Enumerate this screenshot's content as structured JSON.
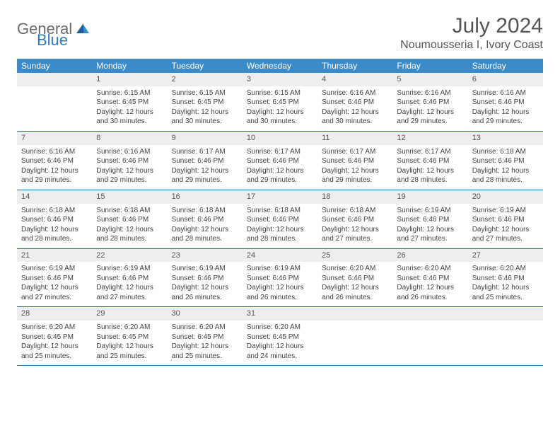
{
  "brand": {
    "general": "General",
    "blue": "Blue"
  },
  "title": "July 2024",
  "location": "Noumousseria I, Ivory Coast",
  "colors": {
    "header_bg": "#3b8bc9",
    "header_text": "#ffffff",
    "daynum_bg": "#eeeeee",
    "rule": "#2b6ca3",
    "brand_gray": "#6b6b6b",
    "brand_blue": "#2b7bbf",
    "body_text": "#444444"
  },
  "dow": [
    "Sunday",
    "Monday",
    "Tuesday",
    "Wednesday",
    "Thursday",
    "Friday",
    "Saturday"
  ],
  "weeks": [
    [
      null,
      {
        "n": "1",
        "sr": "Sunrise: 6:15 AM",
        "ss": "Sunset: 6:45 PM",
        "dl": "Daylight: 12 hours and 30 minutes."
      },
      {
        "n": "2",
        "sr": "Sunrise: 6:15 AM",
        "ss": "Sunset: 6:45 PM",
        "dl": "Daylight: 12 hours and 30 minutes."
      },
      {
        "n": "3",
        "sr": "Sunrise: 6:15 AM",
        "ss": "Sunset: 6:45 PM",
        "dl": "Daylight: 12 hours and 30 minutes."
      },
      {
        "n": "4",
        "sr": "Sunrise: 6:16 AM",
        "ss": "Sunset: 6:46 PM",
        "dl": "Daylight: 12 hours and 30 minutes."
      },
      {
        "n": "5",
        "sr": "Sunrise: 6:16 AM",
        "ss": "Sunset: 6:46 PM",
        "dl": "Daylight: 12 hours and 29 minutes."
      },
      {
        "n": "6",
        "sr": "Sunrise: 6:16 AM",
        "ss": "Sunset: 6:46 PM",
        "dl": "Daylight: 12 hours and 29 minutes."
      }
    ],
    [
      {
        "n": "7",
        "sr": "Sunrise: 6:16 AM",
        "ss": "Sunset: 6:46 PM",
        "dl": "Daylight: 12 hours and 29 minutes."
      },
      {
        "n": "8",
        "sr": "Sunrise: 6:16 AM",
        "ss": "Sunset: 6:46 PM",
        "dl": "Daylight: 12 hours and 29 minutes."
      },
      {
        "n": "9",
        "sr": "Sunrise: 6:17 AM",
        "ss": "Sunset: 6:46 PM",
        "dl": "Daylight: 12 hours and 29 minutes."
      },
      {
        "n": "10",
        "sr": "Sunrise: 6:17 AM",
        "ss": "Sunset: 6:46 PM",
        "dl": "Daylight: 12 hours and 29 minutes."
      },
      {
        "n": "11",
        "sr": "Sunrise: 6:17 AM",
        "ss": "Sunset: 6:46 PM",
        "dl": "Daylight: 12 hours and 29 minutes."
      },
      {
        "n": "12",
        "sr": "Sunrise: 6:17 AM",
        "ss": "Sunset: 6:46 PM",
        "dl": "Daylight: 12 hours and 28 minutes."
      },
      {
        "n": "13",
        "sr": "Sunrise: 6:18 AM",
        "ss": "Sunset: 6:46 PM",
        "dl": "Daylight: 12 hours and 28 minutes."
      }
    ],
    [
      {
        "n": "14",
        "sr": "Sunrise: 6:18 AM",
        "ss": "Sunset: 6:46 PM",
        "dl": "Daylight: 12 hours and 28 minutes."
      },
      {
        "n": "15",
        "sr": "Sunrise: 6:18 AM",
        "ss": "Sunset: 6:46 PM",
        "dl": "Daylight: 12 hours and 28 minutes."
      },
      {
        "n": "16",
        "sr": "Sunrise: 6:18 AM",
        "ss": "Sunset: 6:46 PM",
        "dl": "Daylight: 12 hours and 28 minutes."
      },
      {
        "n": "17",
        "sr": "Sunrise: 6:18 AM",
        "ss": "Sunset: 6:46 PM",
        "dl": "Daylight: 12 hours and 28 minutes."
      },
      {
        "n": "18",
        "sr": "Sunrise: 6:18 AM",
        "ss": "Sunset: 6:46 PM",
        "dl": "Daylight: 12 hours and 27 minutes."
      },
      {
        "n": "19",
        "sr": "Sunrise: 6:19 AM",
        "ss": "Sunset: 6:46 PM",
        "dl": "Daylight: 12 hours and 27 minutes."
      },
      {
        "n": "20",
        "sr": "Sunrise: 6:19 AM",
        "ss": "Sunset: 6:46 PM",
        "dl": "Daylight: 12 hours and 27 minutes."
      }
    ],
    [
      {
        "n": "21",
        "sr": "Sunrise: 6:19 AM",
        "ss": "Sunset: 6:46 PM",
        "dl": "Daylight: 12 hours and 27 minutes."
      },
      {
        "n": "22",
        "sr": "Sunrise: 6:19 AM",
        "ss": "Sunset: 6:46 PM",
        "dl": "Daylight: 12 hours and 27 minutes."
      },
      {
        "n": "23",
        "sr": "Sunrise: 6:19 AM",
        "ss": "Sunset: 6:46 PM",
        "dl": "Daylight: 12 hours and 26 minutes."
      },
      {
        "n": "24",
        "sr": "Sunrise: 6:19 AM",
        "ss": "Sunset: 6:46 PM",
        "dl": "Daylight: 12 hours and 26 minutes."
      },
      {
        "n": "25",
        "sr": "Sunrise: 6:20 AM",
        "ss": "Sunset: 6:46 PM",
        "dl": "Daylight: 12 hours and 26 minutes."
      },
      {
        "n": "26",
        "sr": "Sunrise: 6:20 AM",
        "ss": "Sunset: 6:46 PM",
        "dl": "Daylight: 12 hours and 26 minutes."
      },
      {
        "n": "27",
        "sr": "Sunrise: 6:20 AM",
        "ss": "Sunset: 6:46 PM",
        "dl": "Daylight: 12 hours and 25 minutes."
      }
    ],
    [
      {
        "n": "28",
        "sr": "Sunrise: 6:20 AM",
        "ss": "Sunset: 6:45 PM",
        "dl": "Daylight: 12 hours and 25 minutes."
      },
      {
        "n": "29",
        "sr": "Sunrise: 6:20 AM",
        "ss": "Sunset: 6:45 PM",
        "dl": "Daylight: 12 hours and 25 minutes."
      },
      {
        "n": "30",
        "sr": "Sunrise: 6:20 AM",
        "ss": "Sunset: 6:45 PM",
        "dl": "Daylight: 12 hours and 25 minutes."
      },
      {
        "n": "31",
        "sr": "Sunrise: 6:20 AM",
        "ss": "Sunset: 6:45 PM",
        "dl": "Daylight: 12 hours and 24 minutes."
      },
      null,
      null,
      null
    ]
  ]
}
